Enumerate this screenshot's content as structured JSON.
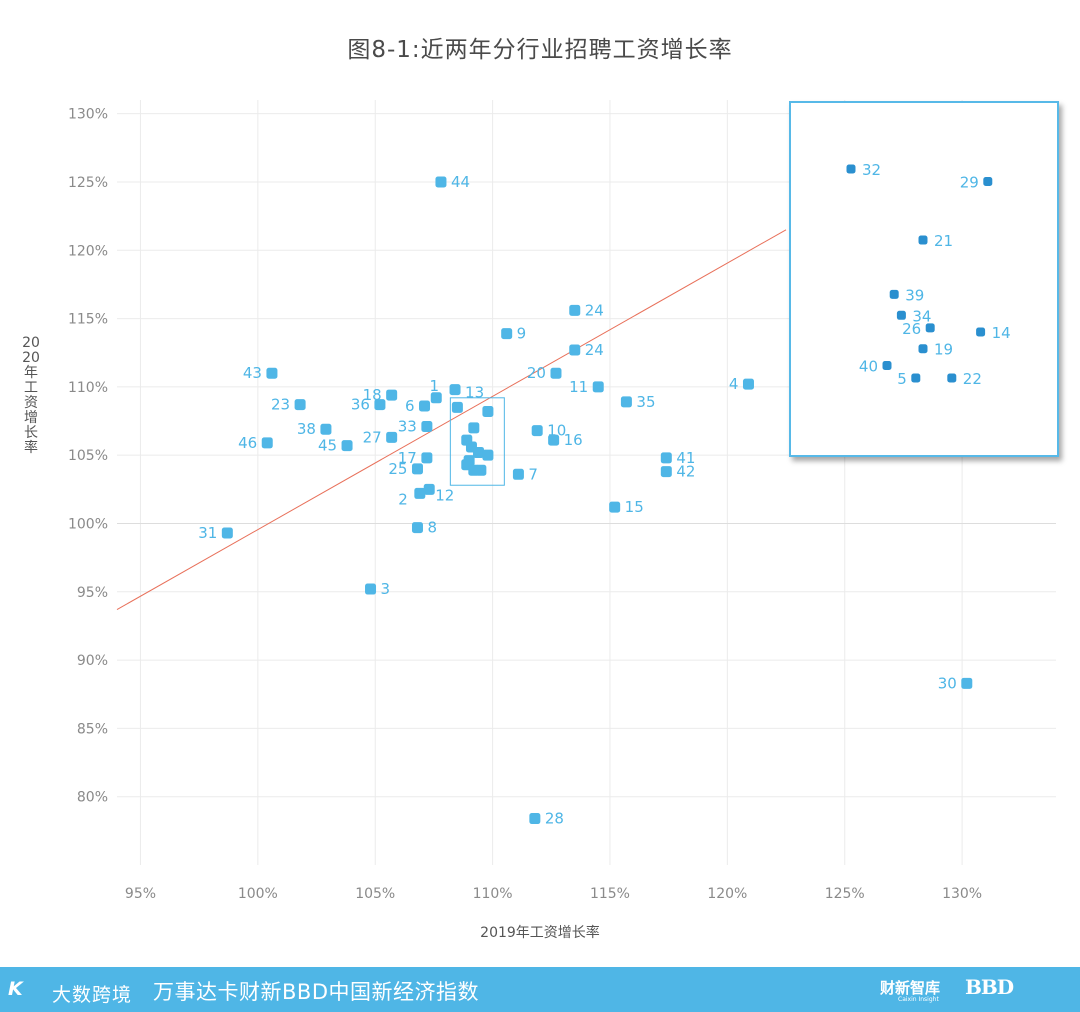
{
  "title": "图8-1:近两年分行业招聘工资增长率",
  "xlabel": "2019年工资增长率",
  "ylabel": "2020年工资增长率",
  "footer": {
    "logo_mark": "K",
    "logo_text": "大数跨境",
    "main_text": "万事达卡财新BBD中国新经济指数",
    "brand1": "财新智库",
    "brand1_sub": "Caixin Insight",
    "brand2": "BBD"
  },
  "colors": {
    "points": "#4fb6e6",
    "inset_points": "#2a8fcf",
    "line": "#e8705a",
    "grid": "#ebebeb",
    "zoom_box": "#4fb6e6"
  },
  "chart_data": {
    "type": "scatter",
    "title": "图8-1:近两年分行业招聘工资增长率",
    "xlabel": "2019年工资增长率",
    "ylabel": "2020年工资增长率",
    "xlim": [
      94,
      134
    ],
    "ylim": [
      75,
      131
    ],
    "x_ticks": [
      "95%",
      "100%",
      "105%",
      "110%",
      "115%",
      "120%",
      "125%",
      "130%"
    ],
    "x_tick_values": [
      95,
      100,
      105,
      110,
      115,
      120,
      125,
      130
    ],
    "y_ticks": [
      "80%",
      "85%",
      "90%",
      "95%",
      "100%",
      "105%",
      "110%",
      "115%",
      "120%",
      "125%",
      "130%"
    ],
    "y_tick_values": [
      80,
      85,
      90,
      95,
      100,
      105,
      110,
      115,
      120,
      125,
      130
    ],
    "grid": true,
    "reference_line": {
      "x": [
        94,
        122.5
      ],
      "y": [
        93.7,
        121.5
      ]
    },
    "points": [
      {
        "label": "44",
        "x": 107.8,
        "y": 125.0
      },
      {
        "label": "24",
        "x": 113.5,
        "y": 115.6
      },
      {
        "label": "9",
        "x": 110.6,
        "y": 113.9
      },
      {
        "label": "24",
        "x": 113.5,
        "y": 112.7
      },
      {
        "label": "43",
        "x": 100.6,
        "y": 111.0
      },
      {
        "label": "20",
        "x": 112.7,
        "y": 111.0
      },
      {
        "label": "4",
        "x": 120.9,
        "y": 110.2
      },
      {
        "label": "11",
        "x": 114.5,
        "y": 110.0
      },
      {
        "label": "1",
        "x": 107.6,
        "y": 109.2
      },
      {
        "label": "13",
        "x": 108.4,
        "y": 109.8
      },
      {
        "label": "18",
        "x": 105.7,
        "y": 109.4
      },
      {
        "label": "23",
        "x": 101.8,
        "y": 108.7
      },
      {
        "label": "36",
        "x": 105.2,
        "y": 108.7
      },
      {
        "label": "6",
        "x": 107.1,
        "y": 108.6
      },
      {
        "label": "35",
        "x": 115.7,
        "y": 108.9
      },
      {
        "label": "38",
        "x": 102.9,
        "y": 106.9
      },
      {
        "label": "33",
        "x": 107.2,
        "y": 107.1
      },
      {
        "label": "27",
        "x": 105.7,
        "y": 106.3
      },
      {
        "label": "10",
        "x": 111.9,
        "y": 106.8
      },
      {
        "label": "16",
        "x": 112.6,
        "y": 106.1
      },
      {
        "label": "46",
        "x": 100.4,
        "y": 105.9
      },
      {
        "label": "45",
        "x": 103.8,
        "y": 105.7
      },
      {
        "label": "41",
        "x": 117.4,
        "y": 104.8
      },
      {
        "label": "17",
        "x": 107.2,
        "y": 104.8
      },
      {
        "label": "42",
        "x": 117.4,
        "y": 103.8
      },
      {
        "label": "25",
        "x": 106.8,
        "y": 104.0
      },
      {
        "label": "7",
        "x": 111.1,
        "y": 103.6
      },
      {
        "label": "12",
        "x": 107.3,
        "y": 102.5
      },
      {
        "label": "2",
        "x": 106.9,
        "y": 102.2
      },
      {
        "label": "15",
        "x": 115.2,
        "y": 101.2
      },
      {
        "label": "8",
        "x": 106.8,
        "y": 99.7
      },
      {
        "label": "31",
        "x": 98.7,
        "y": 99.3
      },
      {
        "label": "3",
        "x": 104.8,
        "y": 95.2
      },
      {
        "label": "30",
        "x": 130.2,
        "y": 88.3
      },
      {
        "label": "28",
        "x": 111.8,
        "y": 78.4
      }
    ],
    "cluster_points": [
      {
        "x": 108.5,
        "y": 108.5
      },
      {
        "x": 109.8,
        "y": 108.2
      },
      {
        "x": 109.2,
        "y": 107.0
      },
      {
        "x": 108.9,
        "y": 106.1
      },
      {
        "x": 109.1,
        "y": 105.6
      },
      {
        "x": 109.4,
        "y": 105.2
      },
      {
        "x": 109.8,
        "y": 105.0
      },
      {
        "x": 109.0,
        "y": 104.6
      },
      {
        "x": 108.9,
        "y": 104.3
      },
      {
        "x": 109.2,
        "y": 103.9
      },
      {
        "x": 109.5,
        "y": 103.9
      }
    ],
    "zoom_region": {
      "x": [
        108.2,
        110.5
      ],
      "y": [
        102.8,
        109.2
      ]
    },
    "inset_points": [
      {
        "label": "32",
        "x": 108.3,
        "y": 108.7
      },
      {
        "label": "29",
        "x": 110.2,
        "y": 108.4
      },
      {
        "label": "21",
        "x": 109.3,
        "y": 107.0
      },
      {
        "label": "39",
        "x": 108.9,
        "y": 105.7
      },
      {
        "label": "34",
        "x": 109.0,
        "y": 105.2
      },
      {
        "label": "14",
        "x": 110.1,
        "y": 104.8
      },
      {
        "label": "26",
        "x": 109.4,
        "y": 104.9
      },
      {
        "label": "19",
        "x": 109.3,
        "y": 104.4
      },
      {
        "label": "40",
        "x": 108.8,
        "y": 104.0
      },
      {
        "label": "5",
        "x": 109.2,
        "y": 103.7
      },
      {
        "label": "22",
        "x": 109.7,
        "y": 103.7
      }
    ]
  }
}
